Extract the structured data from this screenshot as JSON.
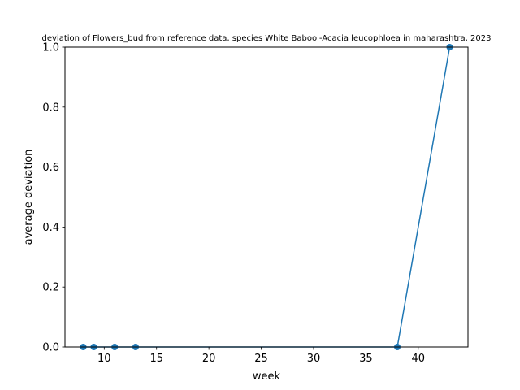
{
  "chart_data": {
    "type": "line",
    "title": "deviation of Flowers_bud from reference data, species White Babool-Acacia leucophloea in maharashtra, 2023",
    "xlabel": "week",
    "ylabel": "average deviation",
    "xlim": [
      6.25,
      44.75
    ],
    "ylim": [
      0,
      1
    ],
    "xticks": [
      10,
      15,
      20,
      25,
      30,
      35,
      40
    ],
    "yticks": [
      0.0,
      0.2,
      0.4,
      0.6,
      0.8,
      1.0
    ],
    "grid": false,
    "series": [
      {
        "x": [
          8,
          9,
          11,
          13,
          38,
          43
        ],
        "y": [
          0,
          0,
          0,
          0,
          0,
          1
        ],
        "color": "#1f77b4"
      }
    ]
  }
}
